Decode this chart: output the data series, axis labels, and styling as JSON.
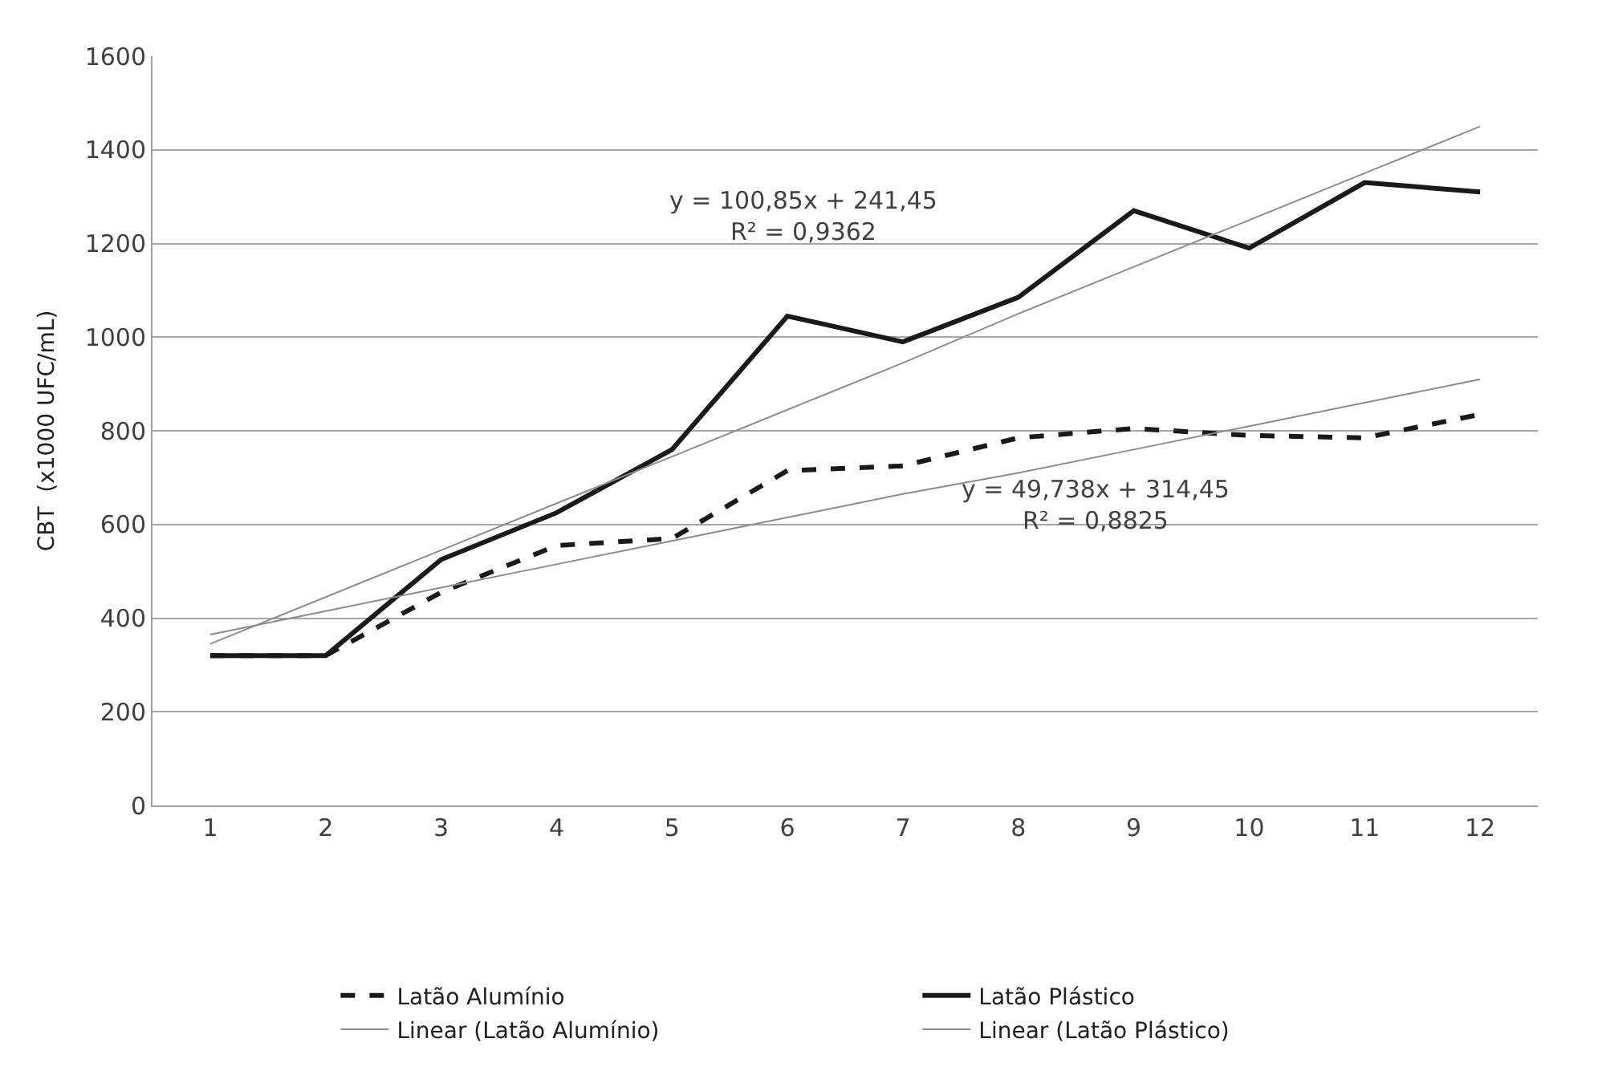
{
  "chart_data": {
    "type": "line",
    "x": [
      1,
      2,
      3,
      4,
      5,
      6,
      7,
      8,
      9,
      10,
      11,
      12
    ],
    "ylabel": "CBT  (x1000 UFC/mL)",
    "series": [
      {
        "name": "Latão Alumínio",
        "color": "#1a1a1a",
        "line_style": "dashed",
        "values": [
          320,
          320,
          455,
          555,
          570,
          715,
          725,
          785,
          805,
          790,
          785,
          835
        ]
      },
      {
        "name": "Latão Plástico",
        "color": "#1a1a1a",
        "line_style": "solid",
        "values": [
          320,
          320,
          525,
          625,
          760,
          1045,
          990,
          1085,
          1270,
          1190,
          1330,
          1310
        ]
      },
      {
        "name": "Linear (Latão Alumínio)",
        "color": "#8c8c8c",
        "line_style": "solid",
        "values": [
          365,
          415,
          465,
          515,
          565,
          615,
          665,
          710,
          760,
          810,
          860,
          910
        ]
      },
      {
        "name": "Linear (Latão Plástico)",
        "color": "#8c8c8c",
        "line_style": "solid",
        "values": [
          345,
          445,
          545,
          645,
          745,
          845,
          945,
          1050,
          1150,
          1250,
          1350,
          1450
        ]
      }
    ],
    "annotations": [
      "y = 100,85x + 241,45\nR² = 0,9362",
      "y = 49,738x + 314,45\nR² = 0,8825"
    ],
    "xlim": [
      0.5,
      12.5
    ],
    "xticks": [
      1,
      2,
      3,
      4,
      5,
      6,
      7,
      8,
      9,
      10,
      11,
      12
    ],
    "ylim": [
      0,
      1600
    ],
    "yticks": [
      0,
      200,
      400,
      600,
      800,
      1000,
      1200,
      1400,
      1600
    ],
    "grid": "y",
    "legend": "bottom",
    "marker": "none"
  }
}
